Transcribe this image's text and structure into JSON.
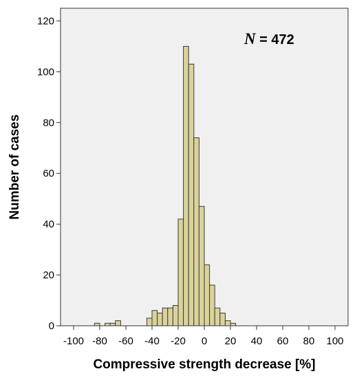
{
  "chart_data": {
    "type": "bar",
    "subtype": "histogram",
    "xlabel": "Compressive strength decrease [%]",
    "ylabel": "Number of cases",
    "annotation": {
      "italic": "N",
      "rest": " = 472"
    },
    "xlim": [
      -110,
      110
    ],
    "ylim": [
      0,
      125
    ],
    "x_ticks": [
      -100,
      -80,
      -60,
      -40,
      -20,
      0,
      20,
      40,
      60,
      80,
      100
    ],
    "x_tick_labels": [
      "-100",
      "-80",
      "-60",
      "-40",
      "-20",
      "0",
      "20",
      "40",
      "60",
      "80",
      "100"
    ],
    "y_ticks": [
      0,
      20,
      40,
      60,
      80,
      100,
      120
    ],
    "y_tick_labels": [
      "0",
      "20",
      "40",
      "60",
      "80",
      "100",
      "120"
    ],
    "bin_width": 4,
    "bins": [
      {
        "start": -84,
        "count": 1
      },
      {
        "start": -76,
        "count": 1
      },
      {
        "start": -72,
        "count": 1
      },
      {
        "start": -68,
        "count": 2
      },
      {
        "start": -44,
        "count": 3
      },
      {
        "start": -40,
        "count": 6
      },
      {
        "start": -36,
        "count": 5
      },
      {
        "start": -32,
        "count": 7
      },
      {
        "start": -28,
        "count": 7
      },
      {
        "start": -24,
        "count": 8
      },
      {
        "start": -20,
        "count": 42
      },
      {
        "start": -16,
        "count": 110
      },
      {
        "start": -12,
        "count": 103
      },
      {
        "start": -8,
        "count": 74
      },
      {
        "start": -4,
        "count": 47
      },
      {
        "start": 0,
        "count": 24
      },
      {
        "start": 4,
        "count": 16
      },
      {
        "start": 8,
        "count": 7
      },
      {
        "start": 12,
        "count": 5
      },
      {
        "start": 16,
        "count": 2
      },
      {
        "start": 20,
        "count": 1
      }
    ],
    "colors": {
      "bar_fill": "#d9d29b",
      "bar_edge": "#3a3a3a",
      "plot_background": "#f0f0f0"
    },
    "grid": false,
    "legend": "none"
  }
}
